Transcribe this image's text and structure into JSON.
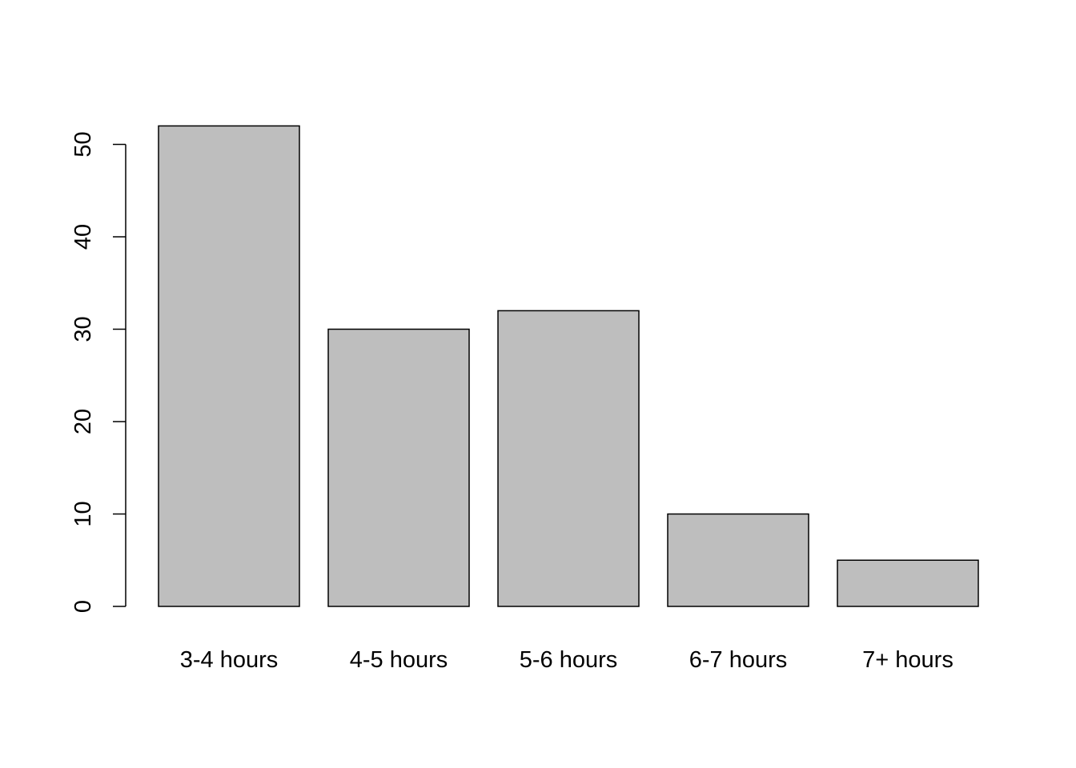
{
  "chart_data": {
    "type": "bar",
    "title": "",
    "xlabel": "",
    "ylabel": "",
    "categories": [
      "3-4 hours",
      "4-5 hours",
      "5-6 hours",
      "6-7 hours",
      "7+ hours"
    ],
    "values": [
      52,
      30,
      32,
      10,
      5
    ],
    "ylim": [
      0,
      52
    ],
    "y_ticks": [
      "0",
      "10",
      "20",
      "30",
      "40",
      "50"
    ],
    "y_tick_values": [
      0,
      10,
      20,
      30,
      40,
      50
    ],
    "y_tick_label_orientation": "vertical",
    "grid": false,
    "legend": "none",
    "bar_color": "#bebebe",
    "bar_border_color": "#000000"
  }
}
